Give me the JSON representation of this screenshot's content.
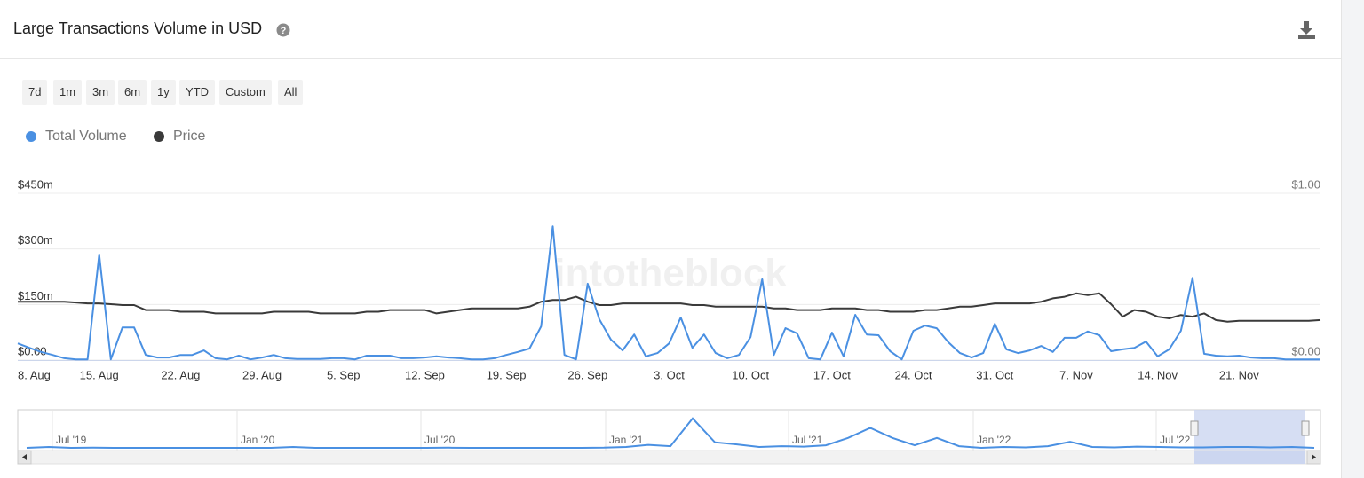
{
  "header": {
    "title": "Large Transactions Volume in USD"
  },
  "range_buttons": [
    "7d",
    "1m",
    "3m",
    "6m",
    "1y",
    "YTD",
    "Custom",
    "All"
  ],
  "chart_data": {
    "type": "line",
    "watermark": "intotheblock",
    "categories": [
      "8. Aug",
      null,
      null,
      null,
      null,
      null,
      null,
      "15. Aug",
      null,
      null,
      null,
      null,
      null,
      null,
      "22. Aug",
      null,
      null,
      null,
      null,
      null,
      null,
      "29. Aug",
      null,
      null,
      null,
      null,
      null,
      null,
      "5. Sep",
      null,
      null,
      null,
      null,
      null,
      null,
      "12. Sep",
      null,
      null,
      null,
      null,
      null,
      null,
      "19. Sep",
      null,
      null,
      null,
      null,
      null,
      null,
      "26. Sep",
      null,
      null,
      null,
      null,
      null,
      null,
      "3. Oct",
      null,
      null,
      null,
      null,
      null,
      null,
      "10. Oct",
      null,
      null,
      null,
      null,
      null,
      null,
      "17. Oct",
      null,
      null,
      null,
      null,
      null,
      null,
      "24. Oct",
      null,
      null,
      null,
      null,
      null,
      null,
      "31. Oct",
      null,
      null,
      null,
      null,
      null,
      null,
      "7. Nov",
      null,
      null,
      null,
      null,
      null,
      null,
      "14. Nov",
      null,
      null,
      null,
      null,
      null,
      null,
      "21. Nov",
      null,
      null,
      null,
      null,
      null,
      null,
      null
    ],
    "series": [
      {
        "name": "Total Volume",
        "color": "#4a90e2",
        "values": [
          45,
          33,
          22,
          14,
          5,
          2,
          2,
          285,
          2,
          88,
          88,
          14,
          7,
          7,
          14,
          14,
          26,
          5,
          2,
          12,
          2,
          7,
          14,
          5,
          3,
          3,
          3,
          5,
          5,
          2,
          12,
          12,
          12,
          5,
          5,
          7,
          10,
          7,
          5,
          2,
          2,
          5,
          14,
          22,
          31,
          91,
          361,
          14,
          2,
          206,
          110,
          55,
          26,
          69,
          10,
          19,
          45,
          115,
          33,
          69,
          19,
          5,
          14,
          62,
          218,
          14,
          86,
          72,
          5,
          2,
          74,
          10,
          122,
          69,
          67,
          24,
          2,
          79,
          93,
          86,
          48,
          19,
          7,
          19,
          98,
          29,
          19,
          26,
          38,
          22,
          60,
          60,
          77,
          67,
          24,
          29,
          33,
          50,
          10,
          29,
          79,
          222,
          17,
          12,
          10,
          12,
          7,
          5,
          5,
          2,
          2,
          2,
          2
        ]
      },
      {
        "name": "Price",
        "color": "#3a3a3a",
        "axis": "y2",
        "values": [
          0.35,
          0.35,
          0.35,
          0.35,
          0.35,
          0.345,
          0.34,
          0.34,
          0.335,
          0.33,
          0.33,
          0.3,
          0.3,
          0.3,
          0.29,
          0.29,
          0.29,
          0.28,
          0.28,
          0.28,
          0.28,
          0.28,
          0.29,
          0.29,
          0.29,
          0.29,
          0.28,
          0.28,
          0.28,
          0.28,
          0.29,
          0.29,
          0.3,
          0.3,
          0.3,
          0.3,
          0.28,
          0.29,
          0.3,
          0.31,
          0.31,
          0.31,
          0.31,
          0.31,
          0.32,
          0.35,
          0.36,
          0.36,
          0.38,
          0.35,
          0.33,
          0.33,
          0.34,
          0.34,
          0.34,
          0.34,
          0.34,
          0.34,
          0.33,
          0.33,
          0.32,
          0.32,
          0.32,
          0.32,
          0.32,
          0.31,
          0.31,
          0.3,
          0.3,
          0.3,
          0.31,
          0.31,
          0.31,
          0.3,
          0.3,
          0.29,
          0.29,
          0.29,
          0.3,
          0.3,
          0.31,
          0.32,
          0.32,
          0.33,
          0.34,
          0.34,
          0.34,
          0.34,
          0.35,
          0.37,
          0.38,
          0.4,
          0.39,
          0.4,
          0.335,
          0.26,
          0.3,
          0.29,
          0.26,
          0.25,
          0.27,
          0.26,
          0.28,
          0.24,
          0.23,
          0.235,
          0.235,
          0.235,
          0.235,
          0.235,
          0.235,
          0.235,
          0.24
        ]
      }
    ],
    "ylim": [
      0,
      450
    ],
    "yticks": [
      {
        "value": 0,
        "label": "$0.00"
      },
      {
        "value": 150,
        "label": "$150m"
      },
      {
        "value": 300,
        "label": "$300m"
      },
      {
        "value": 450,
        "label": "$450m"
      }
    ],
    "y2lim": [
      0,
      1
    ],
    "y2ticks": [
      {
        "value": 0,
        "label": "$0.00"
      },
      {
        "value": 1,
        "label": "$1.00"
      }
    ],
    "grid": true,
    "navigator": {
      "labels": [
        "Jul '19",
        "Jan '20",
        "Jul '20",
        "Jan '21",
        "Jul '21",
        "Jan '22",
        "Jul '22"
      ],
      "color": "#4a90e2",
      "ylim": [
        0,
        900
      ],
      "values": [
        20,
        40,
        20,
        25,
        20,
        20,
        20,
        20,
        20,
        20,
        20,
        20,
        40,
        20,
        20,
        20,
        20,
        20,
        20,
        25,
        20,
        20,
        20,
        20,
        20,
        20,
        25,
        40,
        90,
        60,
        700,
        150,
        100,
        40,
        60,
        50,
        80,
        250,
        480,
        250,
        80,
        250,
        60,
        20,
        40,
        30,
        60,
        160,
        40,
        30,
        50,
        40,
        30,
        30,
        40,
        40,
        30,
        40,
        20
      ]
    }
  }
}
